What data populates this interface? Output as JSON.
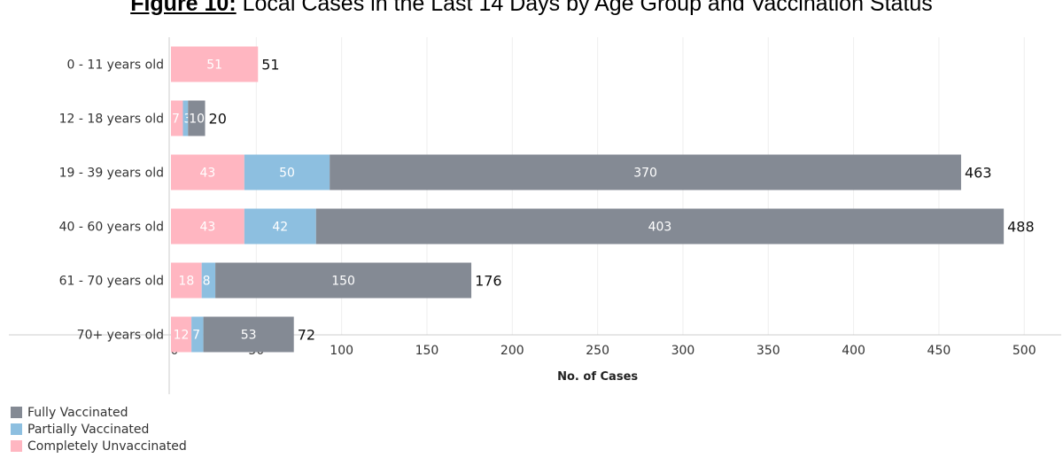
{
  "title": {
    "figure_label": "Figure 10:",
    "text": "Local Cases in the Last 14 Days by Age Group and Vaccination Status"
  },
  "colors": {
    "fully": "#848a94",
    "partially": "#8dbfe0",
    "unvaccinated": "#ffb6c1"
  },
  "chart_data": {
    "type": "bar",
    "orientation": "horizontal",
    "stacked": true,
    "title": "Figure 10: Local Cases in the Last 14 Days by Age Group and Vaccination Status",
    "categories": [
      "0 - 11 years old",
      "12 - 18 years old",
      "19 - 39 years old",
      "40 - 60 years old",
      "61 - 70 years old",
      "70+ years old"
    ],
    "series": [
      {
        "name": "Completely Unvaccinated",
        "color": "#ffb6c1",
        "values": [
          51,
          7,
          43,
          43,
          18,
          12
        ]
      },
      {
        "name": "Partially Vaccinated",
        "color": "#8dbfe0",
        "values": [
          0,
          3,
          50,
          42,
          8,
          7
        ]
      },
      {
        "name": "Fully Vaccinated",
        "color": "#848a94",
        "values": [
          0,
          10,
          370,
          403,
          150,
          53
        ]
      }
    ],
    "totals": [
      51,
      20,
      463,
      488,
      176,
      72
    ],
    "xlabel": "No. of Cases",
    "ylabel": "",
    "xlim": [
      0,
      500
    ],
    "xticks": [
      0,
      50,
      100,
      150,
      200,
      250,
      300,
      350,
      400,
      450,
      500
    ],
    "grid": true,
    "legend_position": "bottom-left",
    "legend": [
      "Fully Vaccinated",
      "Partially Vaccinated",
      "Completely Unvaccinated"
    ]
  }
}
